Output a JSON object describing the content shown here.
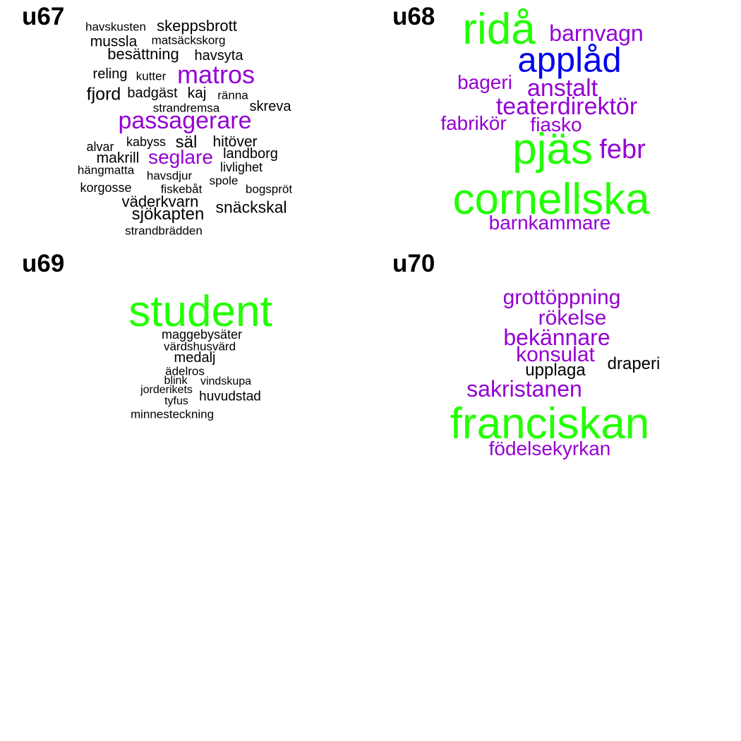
{
  "palette": {
    "black": "#000000",
    "purple": "#9400d3",
    "green": "#22ff00",
    "blue": "#0000ee"
  },
  "chart_data": [
    {
      "type": "wordcloud",
      "title": "u67",
      "words": [
        {
          "text": "havskusten",
          "color": "black"
        },
        {
          "text": "skeppsbrott",
          "color": "black"
        },
        {
          "text": "mussla",
          "color": "black"
        },
        {
          "text": "matsäckskorg",
          "color": "black"
        },
        {
          "text": "besättning",
          "color": "black"
        },
        {
          "text": "havsyta",
          "color": "black"
        },
        {
          "text": "reling",
          "color": "black"
        },
        {
          "text": "kutter",
          "color": "black"
        },
        {
          "text": "matros",
          "color": "purple"
        },
        {
          "text": "fjord",
          "color": "black"
        },
        {
          "text": "badgäst",
          "color": "black"
        },
        {
          "text": "kaj",
          "color": "black"
        },
        {
          "text": "ränna",
          "color": "black"
        },
        {
          "text": "strandremsa",
          "color": "black"
        },
        {
          "text": "skreva",
          "color": "black"
        },
        {
          "text": "passagerare",
          "color": "purple"
        },
        {
          "text": "alvar",
          "color": "black"
        },
        {
          "text": "kabyss",
          "color": "black"
        },
        {
          "text": "säl",
          "color": "black"
        },
        {
          "text": "hitöver",
          "color": "black"
        },
        {
          "text": "makrill",
          "color": "black"
        },
        {
          "text": "seglare",
          "color": "purple"
        },
        {
          "text": "landborg",
          "color": "black"
        },
        {
          "text": "hängmatta",
          "color": "black"
        },
        {
          "text": "livlighet",
          "color": "black"
        },
        {
          "text": "havsdjur",
          "color": "black"
        },
        {
          "text": "spole",
          "color": "black"
        },
        {
          "text": "korgosse",
          "color": "black"
        },
        {
          "text": "fiskebåt",
          "color": "black"
        },
        {
          "text": "bogspröt",
          "color": "black"
        },
        {
          "text": "väderkvarn",
          "color": "black"
        },
        {
          "text": "snäckskal",
          "color": "black"
        },
        {
          "text": "sjökapten",
          "color": "black"
        },
        {
          "text": "strandbrädden",
          "color": "black"
        }
      ]
    },
    {
      "type": "wordcloud",
      "title": "u68",
      "words": [
        {
          "text": "ridå",
          "color": "green"
        },
        {
          "text": "barnvagn",
          "color": "purple"
        },
        {
          "text": "applåd",
          "color": "blue"
        },
        {
          "text": "bageri",
          "color": "purple"
        },
        {
          "text": "anstalt",
          "color": "purple"
        },
        {
          "text": "teaterdirektör",
          "color": "purple"
        },
        {
          "text": "fabrikör",
          "color": "purple"
        },
        {
          "text": "fiasko",
          "color": "purple"
        },
        {
          "text": "pjäs",
          "color": "green"
        },
        {
          "text": "febr",
          "color": "purple"
        },
        {
          "text": "cornellska",
          "color": "green"
        },
        {
          "text": "barnkammare",
          "color": "purple"
        }
      ]
    },
    {
      "type": "wordcloud",
      "title": "u69",
      "words": [
        {
          "text": "student",
          "color": "green"
        },
        {
          "text": "maggebysäter",
          "color": "black"
        },
        {
          "text": "värdshusvärd",
          "color": "black"
        },
        {
          "text": "medalj",
          "color": "black"
        },
        {
          "text": "ädelros",
          "color": "black"
        },
        {
          "text": "blink",
          "color": "black"
        },
        {
          "text": "vindskupa",
          "color": "black"
        },
        {
          "text": "jorderikets",
          "color": "black"
        },
        {
          "text": "huvudstad",
          "color": "black"
        },
        {
          "text": "tyfus",
          "color": "black"
        },
        {
          "text": "minnesteckning",
          "color": "black"
        }
      ]
    },
    {
      "type": "wordcloud",
      "title": "u70",
      "words": [
        {
          "text": "grottöppning",
          "color": "purple"
        },
        {
          "text": "rökelse",
          "color": "purple"
        },
        {
          "text": "bekännare",
          "color": "purple"
        },
        {
          "text": "konsulat",
          "color": "purple"
        },
        {
          "text": "upplaga",
          "color": "black"
        },
        {
          "text": "draperi",
          "color": "black"
        },
        {
          "text": "sakristanen",
          "color": "purple"
        },
        {
          "text": "franciskan",
          "color": "green"
        },
        {
          "text": "födelsekyrkan",
          "color": "purple"
        }
      ]
    }
  ]
}
